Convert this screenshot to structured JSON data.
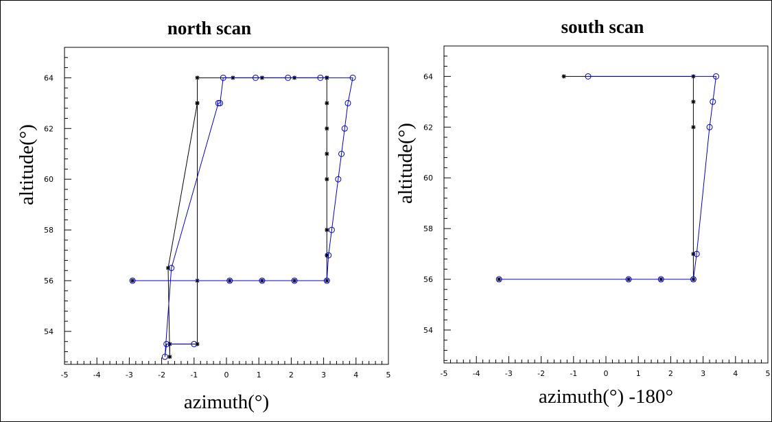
{
  "chart_data": [
    {
      "type": "scatter",
      "title": "north scan",
      "xlabel": "azimuth(°)",
      "ylabel": "altitude(°)",
      "xlim": [
        -5,
        5
      ],
      "ylim": [
        52.7,
        65.2
      ],
      "xticks": [
        -5,
        -4,
        -3,
        -2,
        -1,
        0,
        1,
        2,
        3,
        4,
        5
      ],
      "yticks": [
        54,
        56,
        58,
        60,
        62,
        64
      ],
      "grid": false,
      "series": [
        {
          "marker": "asterisk",
          "color": "#000000",
          "x": [
            -2.9,
            0.1,
            1.1,
            2.1,
            3.1,
            3.1,
            3.1,
            3.1,
            3.1,
            3.1,
            3.1,
            3.1,
            3.1,
            2.1,
            1.1,
            0.2,
            -0.9,
            -0.9,
            -1.8,
            -1.75,
            -1.75,
            -0.9,
            -0.9,
            -0.9
          ],
          "y": [
            56,
            56,
            56,
            56,
            56,
            57,
            58,
            60,
            61,
            62,
            63,
            64,
            64,
            64,
            64,
            64,
            64,
            63,
            56.5,
            53,
            53.5,
            53.5,
            56,
            63
          ]
        },
        {
          "marker": "circle",
          "color": "#0000cc",
          "x": [
            -2.9,
            0.1,
            1.1,
            2.1,
            3.1,
            3.15,
            3.25,
            3.45,
            3.55,
            3.65,
            3.75,
            3.9,
            2.9,
            1.9,
            0.9,
            -0.1,
            -0.2,
            -0.25,
            -1.7,
            -1.9,
            -1.85,
            -1.0
          ],
          "y": [
            56,
            56,
            56,
            56,
            56,
            57,
            58,
            60,
            61,
            62,
            63,
            64,
            64,
            64,
            64,
            64,
            63,
            63,
            56.5,
            53,
            53.5,
            53.5
          ]
        }
      ]
    },
    {
      "type": "scatter",
      "title": "south scan",
      "xlabel": "azimuth(°) -180°",
      "ylabel": "altitude(°)",
      "xlim": [
        -5,
        5
      ],
      "ylim": [
        52.7,
        65.2
      ],
      "xticks": [
        -5,
        -4,
        -3,
        -2,
        -1,
        0,
        1,
        2,
        3,
        4,
        5
      ],
      "yticks": [
        54,
        56,
        58,
        60,
        62,
        64
      ],
      "grid": false,
      "series": [
        {
          "marker": "asterisk",
          "color": "#000000",
          "x": [
            -3.3,
            0.7,
            1.7,
            2.7,
            2.7,
            2.7,
            2.7,
            2.7,
            -1.3
          ],
          "y": [
            56,
            56,
            56,
            56,
            57,
            62,
            63,
            64,
            64
          ]
        },
        {
          "marker": "circle",
          "color": "#0000cc",
          "x": [
            -3.3,
            0.7,
            1.7,
            2.7,
            2.8,
            3.2,
            3.3,
            3.4,
            -0.55
          ],
          "y": [
            56,
            56,
            56,
            56,
            57,
            62,
            63,
            64,
            64
          ]
        }
      ]
    }
  ]
}
